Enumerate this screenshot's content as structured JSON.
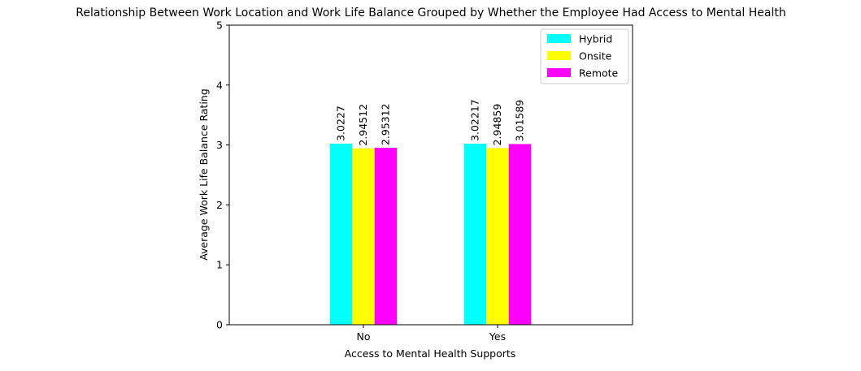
{
  "chart_data": {
    "type": "bar",
    "title": "Relationship Between Work Location and Work Life Balance Grouped by Whether the Employee Had Access to Mental Health",
    "xlabel": "Access to Mental Health Supports",
    "ylabel": "Average Work Life Balance Rating",
    "categories": [
      "No",
      "Yes"
    ],
    "series": [
      {
        "name": "Hybrid",
        "values": [
          3.0227,
          3.02217
        ],
        "labels": [
          "3.0227",
          "3.02217"
        ],
        "color": "#00ffff"
      },
      {
        "name": "Onsite",
        "values": [
          2.94512,
          2.94859
        ],
        "labels": [
          "2.94512",
          "2.94859"
        ],
        "color": "#ffff00"
      },
      {
        "name": "Remote",
        "values": [
          2.95312,
          3.01589
        ],
        "labels": [
          "2.95312",
          "3.01589"
        ],
        "color": "#ff00ff"
      }
    ],
    "ylim": [
      0,
      5
    ],
    "yticks": [
      "0",
      "1",
      "2",
      "3",
      "4",
      "5"
    ],
    "grid": false,
    "legend_position": "top-right"
  }
}
